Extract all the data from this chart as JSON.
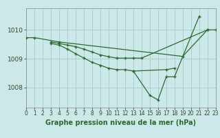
{
  "title": "Graphe pression niveau de la mer (hPa)",
  "bg_color": "#cce8e8",
  "grid_color": "#aad0d0",
  "line_color": "#2d6a2d",
  "series": [
    {
      "x": [
        0,
        1,
        4,
        19,
        22,
        23
      ],
      "y": [
        1009.73,
        1009.73,
        1009.58,
        1009.08,
        1010.0,
        1010.0
      ]
    },
    {
      "x": [
        3,
        4,
        5,
        6,
        7,
        8,
        9,
        10,
        11,
        12,
        13,
        14,
        22
      ],
      "y": [
        1009.58,
        1009.53,
        1009.47,
        1009.42,
        1009.33,
        1009.23,
        1009.13,
        1009.07,
        1009.02,
        1009.02,
        1009.02,
        1009.02,
        1010.0
      ]
    },
    {
      "x": [
        3,
        4,
        5,
        6,
        7,
        8,
        9,
        10,
        11,
        12,
        13,
        17,
        18
      ],
      "y": [
        1009.53,
        1009.47,
        1009.33,
        1009.17,
        1009.02,
        1008.87,
        1008.77,
        1008.67,
        1008.62,
        1008.62,
        1008.57,
        1008.62,
        1008.67
      ]
    },
    {
      "x": [
        13,
        15,
        16,
        17,
        18,
        21
      ],
      "y": [
        1008.57,
        1007.73,
        1007.57,
        1008.37,
        1008.37,
        1010.47
      ]
    }
  ],
  "xlim": [
    0,
    23
  ],
  "ylim": [
    1007.3,
    1010.75
  ],
  "yticks": [
    1008,
    1009,
    1010
  ],
  "xticks": [
    0,
    1,
    2,
    3,
    4,
    5,
    6,
    7,
    8,
    9,
    10,
    11,
    12,
    13,
    14,
    15,
    16,
    17,
    18,
    19,
    20,
    21,
    22,
    23
  ]
}
